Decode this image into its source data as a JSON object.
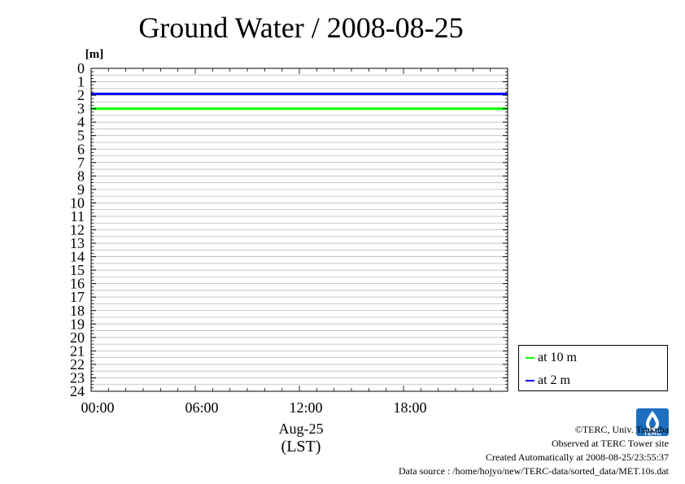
{
  "chart_data": {
    "type": "line",
    "title": "Ground Water / 2008-08-25",
    "ylabel": "[m]",
    "xlabel": "Aug-25",
    "xlabel2": "(LST)",
    "y_inverted": true,
    "ylim": [
      0,
      24
    ],
    "xlim_hours": [
      0,
      24
    ],
    "x_ticks": [
      "00:00",
      "06:00",
      "12:00",
      "18:00"
    ],
    "x_tick_hours": [
      0,
      6,
      12,
      18
    ],
    "y_ticks": [
      0,
      1,
      2,
      3,
      4,
      5,
      6,
      7,
      8,
      9,
      10,
      11,
      12,
      13,
      14,
      15,
      16,
      17,
      18,
      19,
      20,
      21,
      22,
      23,
      24
    ],
    "grid": true,
    "legend_position": "right-bottom",
    "series": [
      {
        "name": "at 10 m",
        "color": "#00ff00",
        "x_hours": [
          0,
          24
        ],
        "values": [
          3.0,
          3.0
        ]
      },
      {
        "name": "at 2 m",
        "color": "#0000ff",
        "x_hours": [
          0,
          24
        ],
        "values": [
          1.9,
          1.9
        ]
      }
    ]
  },
  "credits": {
    "copyright": "©TERC, Univ. Tsukuba",
    "observed": "Observed at TERC Tower site",
    "created": "Created Automatically at 2008-08-25/23:55:37",
    "source": "Data source : /home/hojyo/new/TERC-data/sorted_data/MET.10s.dat"
  },
  "logo_text": "TERC"
}
